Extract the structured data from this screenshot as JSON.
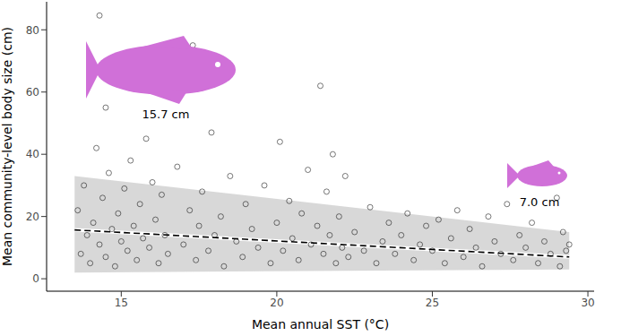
{
  "chart_data": {
    "type": "scatter",
    "x_label": "Mean annual SST (°C)",
    "y_label": "Mean community-level body size (cm)",
    "xlim": [
      12.6,
      30.2
    ],
    "xticks": [
      15,
      20,
      25,
      30
    ],
    "ylim": [
      -4,
      89
    ],
    "yticks": [
      0,
      20,
      40,
      60,
      80
    ],
    "grid": false,
    "series": [
      {
        "type": "scatter",
        "marker": "circle",
        "color": "#000000",
        "x": [
          13.6,
          13.7,
          13.8,
          13.9,
          14.0,
          14.1,
          14.2,
          14.3,
          14.3,
          14.4,
          14.5,
          14.5,
          14.6,
          14.7,
          14.8,
          14.9,
          15.0,
          15.1,
          15.2,
          15.3,
          15.4,
          15.5,
          15.6,
          15.7,
          15.8,
          15.9,
          16.0,
          16.1,
          16.2,
          16.3,
          16.4,
          16.5,
          16.8,
          17.0,
          17.2,
          17.3,
          17.4,
          17.5,
          17.6,
          17.8,
          17.9,
          18.0,
          18.2,
          18.3,
          18.5,
          18.7,
          18.9,
          19.0,
          19.2,
          19.4,
          19.6,
          19.8,
          20.0,
          20.1,
          20.2,
          20.4,
          20.5,
          20.7,
          20.8,
          21.0,
          21.1,
          21.3,
          21.4,
          21.5,
          21.6,
          21.7,
          21.8,
          21.9,
          22.0,
          22.1,
          22.2,
          22.3,
          22.5,
          22.8,
          23.0,
          23.2,
          23.4,
          23.6,
          23.8,
          24.0,
          24.2,
          24.4,
          24.6,
          24.8,
          25.0,
          25.2,
          25.4,
          25.6,
          25.8,
          26.0,
          26.2,
          26.4,
          26.6,
          26.8,
          27.0,
          27.2,
          27.4,
          27.6,
          27.8,
          28.0,
          28.2,
          28.4,
          28.6,
          28.8,
          29.0,
          29.1,
          29.2,
          29.3,
          29.4
        ],
        "values": [
          22,
          8,
          30,
          14,
          5,
          18,
          42,
          84.6,
          11,
          26,
          55,
          7,
          34,
          16,
          4,
          21,
          12,
          29,
          9,
          38,
          17,
          6,
          24,
          13,
          45,
          10,
          31,
          19,
          5,
          27,
          14,
          8,
          36,
          11,
          22,
          75,
          6,
          17,
          28,
          9,
          47,
          14,
          20,
          4,
          33,
          12,
          7,
          24,
          16,
          10,
          30,
          5,
          18,
          44,
          9,
          25,
          13,
          6,
          21,
          35,
          11,
          17,
          62,
          8,
          28,
          14,
          40,
          5,
          20,
          10,
          33,
          7,
          15,
          9,
          23,
          5,
          12,
          18,
          8,
          14,
          21,
          6,
          11,
          17,
          9,
          19,
          5,
          13,
          22,
          7,
          16,
          10,
          4,
          20,
          12,
          8,
          24,
          6,
          14,
          10,
          18,
          5,
          12,
          8,
          26,
          4,
          15,
          9,
          11
        ]
      },
      {
        "type": "line",
        "line_style": "dashed",
        "color": "#000000",
        "x": [
          13.5,
          29.4
        ],
        "values": [
          15.7,
          7.0
        ]
      }
    ],
    "band": {
      "color": "#c8c8c8",
      "x": [
        13.5,
        29.4
      ],
      "lower": [
        2,
        3
      ],
      "upper": [
        33,
        15
      ]
    },
    "annotations": [
      {
        "text": "15.7 cm"
      },
      {
        "text": "7.0 cm"
      }
    ]
  }
}
